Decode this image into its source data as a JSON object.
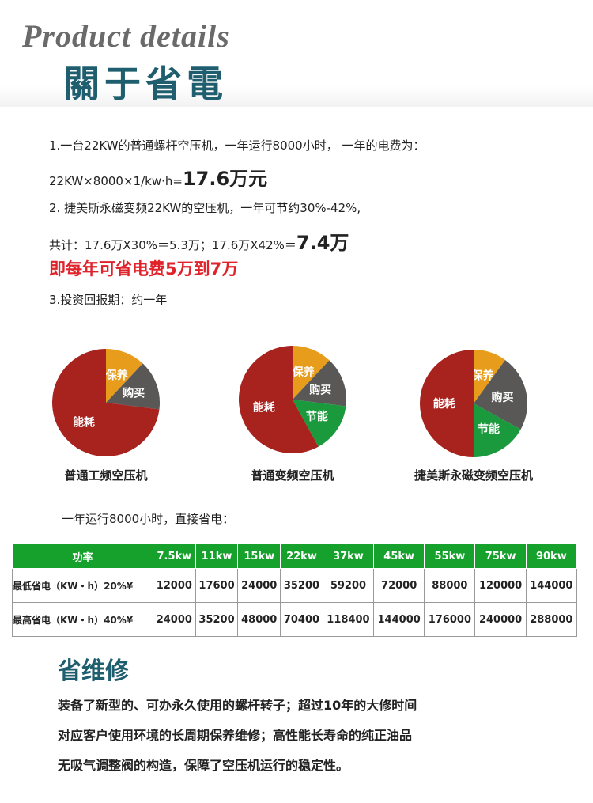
{
  "header": {
    "title_en": "Product details",
    "title": "關于省電"
  },
  "intro": {
    "line1": "1.一台22KW的普通螺杆空压机，一年运行8000小时， 一年的电费为：",
    "line2_prefix": "22KW×8000×1/kw·h=",
    "line2_value": "17.6万元",
    "line3": "2. 捷美斯永磁变频22KW的空压机，一年可节约30%-42%,",
    "line4_prefix": "共计：17.6万X30%＝5.3万；17.6万X42%＝",
    "line4_value": "7.4万",
    "highlight": "即每年可省电费5万到7万",
    "line5": "3.投资回报期：约一年"
  },
  "pies": [
    {
      "caption": "普通工频空压机",
      "slices": [
        {
          "label": "保养",
          "value": 12,
          "color": "#e89c1c"
        },
        {
          "label": "购买",
          "value": 15,
          "color": "#595857"
        },
        {
          "label": "能耗",
          "value": 73,
          "color": "#a8231e"
        }
      ]
    },
    {
      "caption": "普通变频空压机",
      "slices": [
        {
          "label": "保养",
          "value": 12,
          "color": "#e89c1c"
        },
        {
          "label": "购买",
          "value": 15,
          "color": "#595857"
        },
        {
          "label": "节能",
          "value": 15,
          "color": "#1a9a3c"
        },
        {
          "label": "能耗",
          "value": 58,
          "color": "#a8231e"
        }
      ]
    },
    {
      "caption": "捷美斯永磁变频空压机",
      "slices": [
        {
          "label": "保养",
          "value": 10,
          "color": "#e89c1c"
        },
        {
          "label": "购买",
          "value": 23,
          "color": "#595857"
        },
        {
          "label": "节能",
          "value": 17,
          "color": "#1a9a3c"
        },
        {
          "label": "能耗",
          "value": 50,
          "color": "#a8231e"
        }
      ]
    }
  ],
  "table_intro": "一年运行8000小时，直接省电：",
  "table": {
    "header": [
      "功率",
      "7.5kw",
      "11kw",
      "15kw",
      "22kw",
      "37kw",
      "45kw",
      "55kw",
      "75kw",
      "90kw"
    ],
    "rows": [
      {
        "label": "最低省电（KW・h）20%¥",
        "values": [
          12000,
          17600,
          24000,
          35200,
          59200,
          72000,
          88000,
          120000,
          144000
        ]
      },
      {
        "label": "最高省电（KW・h）40%¥",
        "values": [
          24000,
          35200,
          48000,
          70400,
          118400,
          144000,
          176000,
          240000,
          288000
        ]
      }
    ]
  },
  "maintenance": {
    "title": "省维修",
    "lines": [
      "装备了新型的、可办永久使用的螺杆转子；超过10年的大修时间",
      "对应客户使用环境的长周期保养维修；高性能长寿命的纯正油品",
      "无吸气调整阀的构造，保障了空压机运行的稳定性。"
    ]
  }
}
